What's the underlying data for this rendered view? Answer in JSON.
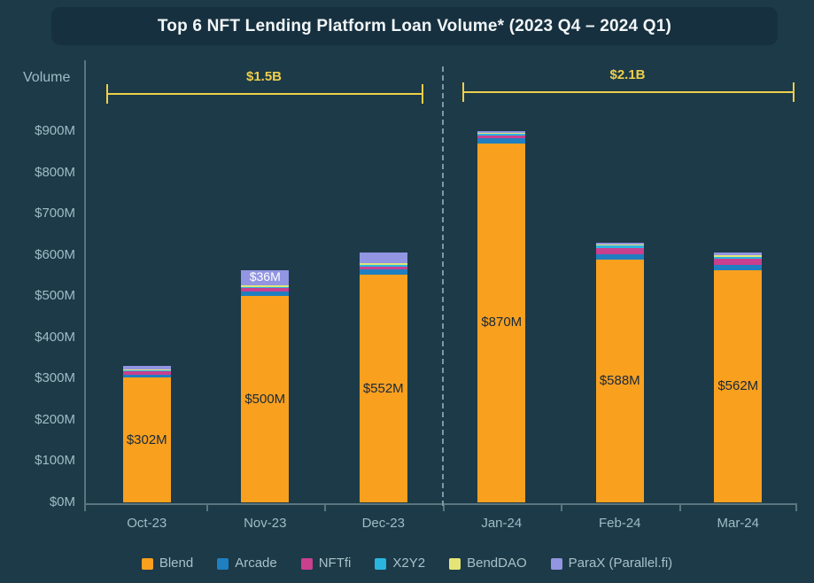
{
  "title": "Top 6 NFT Lending Platform Loan Volume* (2023 Q4 – 2024 Q1)",
  "y_axis_title": "Volume",
  "chart_data": {
    "type": "bar",
    "stacked": true,
    "title": "Top 6 NFT Lending Platform Loan Volume* (2023 Q4 – 2024 Q1)",
    "ylabel": "Volume",
    "ylim": [
      0,
      900
    ],
    "grid": false,
    "legend_position": "bottom",
    "y_ticks": [
      {
        "label": "$0M",
        "value": 0
      },
      {
        "label": "$100M",
        "value": 100
      },
      {
        "label": "$200M",
        "value": 200
      },
      {
        "label": "$300M",
        "value": 300
      },
      {
        "label": "$400M",
        "value": 400
      },
      {
        "label": "$500M",
        "value": 500
      },
      {
        "label": "$600M",
        "value": 600
      },
      {
        "label": "$700M",
        "value": 700
      },
      {
        "label": "$800M",
        "value": 800
      },
      {
        "label": "$900M",
        "value": 900
      }
    ],
    "categories": [
      "Oct-23",
      "Nov-23",
      "Dec-23",
      "Jan-24",
      "Feb-24",
      "Mar-24"
    ],
    "series": [
      {
        "name": "Blend",
        "color": "#F9A01F",
        "values": [
          302,
          500,
          552,
          870,
          588,
          562
        ]
      },
      {
        "name": "Arcade",
        "color": "#1F7FC0",
        "values": [
          8,
          12,
          12,
          12,
          14,
          14
        ]
      },
      {
        "name": "NFTfi",
        "color": "#C9408F",
        "values": [
          8,
          8,
          8,
          8,
          15,
          15
        ]
      },
      {
        "name": "X2Y2",
        "color": "#2AB5E0",
        "values": [
          3,
          3,
          4,
          3,
          6,
          5
        ]
      },
      {
        "name": "BendDAO",
        "color": "#E4E477",
        "values": [
          2,
          4,
          4,
          2,
          2,
          4
        ]
      },
      {
        "name": "ParaX (Parallel.fi)",
        "color": "#9195E2",
        "values": [
          7,
          36,
          26,
          5,
          4,
          5
        ]
      }
    ],
    "bar_value_labels": [
      "$302M",
      "$500M",
      "$552M",
      "$870M",
      "$588M",
      "$562M"
    ],
    "segment_callout": {
      "category_index": 1,
      "series_name": "ParaX (Parallel.fi)",
      "text": "$36M"
    },
    "group_annotations": [
      {
        "label": "$1.5B",
        "categories": [
          "Oct-23",
          "Nov-23",
          "Dec-23"
        ]
      },
      {
        "label": "$2.1B",
        "categories": [
          "Jan-24",
          "Feb-24",
          "Mar-24"
        ]
      }
    ]
  },
  "colors": {
    "background": "#1C3A48",
    "title_bar_bg": "#16303F",
    "title_text": "#F2F6F8",
    "axis_line": "#5B757F",
    "tick_text": "#9FBCC6",
    "annotation_yellow": "#EFCE4A",
    "divider_dash": "#7E99A3",
    "bar_label_text": "#18293A",
    "callout_text": "#FFFFFF",
    "legend_text": "#A9C1CA"
  }
}
